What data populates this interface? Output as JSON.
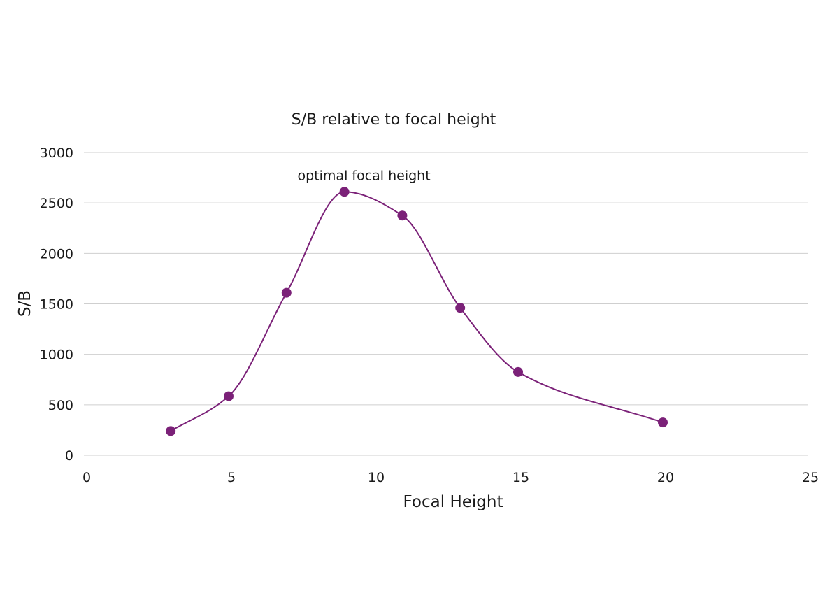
{
  "chart_data": {
    "type": "scatter",
    "title": "S/B relative to focal height",
    "xlabel": "Focal Height",
    "ylabel": "S/B",
    "xlim": [
      0,
      25
    ],
    "ylim": [
      0,
      3000
    ],
    "x_ticks": [
      0,
      5,
      10,
      15,
      20,
      25
    ],
    "y_ticks": [
      0,
      500,
      1000,
      1500,
      2000,
      2500,
      3000
    ],
    "grid": "horizontal",
    "smooth_line": true,
    "series": [
      {
        "color": "#7b2178",
        "points": [
          {
            "x": 3,
            "y": 240
          },
          {
            "x": 5,
            "y": 585
          },
          {
            "x": 7,
            "y": 1610
          },
          {
            "x": 9,
            "y": 2610
          },
          {
            "x": 11,
            "y": 2375
          },
          {
            "x": 13,
            "y": 1460
          },
          {
            "x": 15,
            "y": 825
          },
          {
            "x": 20,
            "y": 325
          }
        ]
      }
    ],
    "annotations": [
      {
        "text": "optimal focal height",
        "x": 9,
        "y": 2610
      }
    ]
  }
}
